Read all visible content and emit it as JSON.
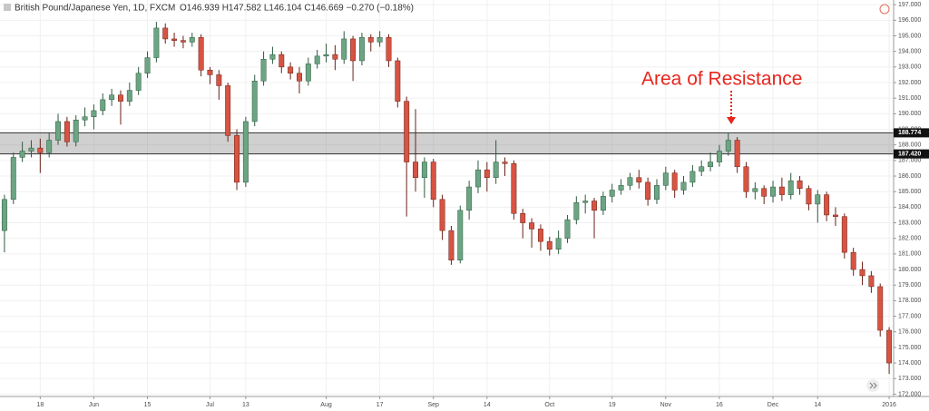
{
  "chart_data": {
    "type": "candlestick",
    "title": "British Pound/Japanese Yen, 1D, FXCM",
    "subtitle": "O146.939 H147.582 L146.104 C146.669 −0.270 (−0.18%)",
    "annotation": "Area of Resistance",
    "up_color": "#6ba583",
    "down_color": "#d75442",
    "grid": true,
    "xlim": [
      -0.5,
      99.5
    ],
    "ylim": [
      171.85,
      197.3
    ],
    "xticks": [
      {
        "value": 4,
        "label": "18"
      },
      {
        "value": 10,
        "label": "Jun"
      },
      {
        "value": 16,
        "label": "15"
      },
      {
        "value": 23,
        "label": "Jul"
      },
      {
        "value": 27,
        "label": "13"
      },
      {
        "value": 36,
        "label": "Aug"
      },
      {
        "value": 42,
        "label": "17"
      },
      {
        "value": 48,
        "label": "Sep"
      },
      {
        "value": 54,
        "label": "14"
      },
      {
        "value": 61,
        "label": "Oct"
      },
      {
        "value": 68,
        "label": "19"
      },
      {
        "value": 74,
        "label": "Nov"
      },
      {
        "value": 80,
        "label": "16"
      },
      {
        "value": 86,
        "label": "Dec"
      },
      {
        "value": 91,
        "label": "14"
      },
      {
        "value": 99,
        "label": "2016"
      }
    ],
    "yticks": [
      {
        "value": 172,
        "label": "172.000"
      },
      {
        "value": 173,
        "label": "173.000"
      },
      {
        "value": 174,
        "label": "174.000"
      },
      {
        "value": 175,
        "label": "175.000"
      },
      {
        "value": 176,
        "label": "176.000"
      },
      {
        "value": 177,
        "label": "177.000"
      },
      {
        "value": 178,
        "label": "178.000"
      },
      {
        "value": 179,
        "label": "179.000"
      },
      {
        "value": 180,
        "label": "180.000"
      },
      {
        "value": 181,
        "label": "181.000"
      },
      {
        "value": 182,
        "label": "182.000"
      },
      {
        "value": 183,
        "label": "183.000"
      },
      {
        "value": 184,
        "label": "184.000"
      },
      {
        "value": 185,
        "label": "185.000"
      },
      {
        "value": 186,
        "label": "186.000"
      },
      {
        "value": 187,
        "label": "187.000"
      },
      {
        "value": 188,
        "label": "188.000"
      },
      {
        "value": 189,
        "label": "189.000"
      },
      {
        "value": 190,
        "label": "190.000"
      },
      {
        "value": 191,
        "label": "191.000"
      },
      {
        "value": 192,
        "label": "192.000"
      },
      {
        "value": 193,
        "label": "193.000"
      },
      {
        "value": 194,
        "label": "194.000"
      },
      {
        "value": 195,
        "label": "195.000"
      },
      {
        "value": 196,
        "label": "196.000"
      },
      {
        "value": 197,
        "label": "197.000"
      }
    ],
    "resistance_zone": [
      {
        "value": 187.42,
        "label": "187.420"
      },
      {
        "value": 188.774,
        "label": "188.774"
      }
    ],
    "open": [
      182.5,
      184.5,
      187.2,
      187.6,
      187.8,
      187.5,
      188.3,
      189.5,
      188.2,
      189.6,
      189.8,
      190.2,
      190.9,
      191.2,
      190.8,
      191.5,
      192.6,
      193.6,
      195.5,
      194.8,
      194.7,
      194.6,
      194.9,
      192.8,
      192.5,
      191.8,
      188.6,
      185.6,
      189.5,
      192.1,
      193.5,
      193.8,
      193.0,
      192.6,
      192.1,
      193.2,
      193.7,
      193.8,
      193.5,
      194.8,
      193.4,
      194.9,
      194.6,
      194.9,
      193.4,
      190.8,
      186.9,
      185.9,
      186.9,
      184.5,
      182.5,
      180.6,
      183.8,
      185.3,
      186.4,
      185.9,
      186.9,
      186.8,
      183.6,
      183.0,
      182.6,
      181.8,
      181.3,
      182.0,
      183.2,
      184.3,
      184.4,
      183.8,
      184.7,
      185.1,
      185.4,
      185.9,
      185.6,
      184.5,
      185.4,
      186.2,
      185.1,
      185.6,
      186.3,
      186.6,
      186.9,
      187.6,
      188.3,
      186.6,
      185.0,
      185.2,
      184.7,
      185.3,
      184.8,
      185.7,
      185.2,
      184.2,
      184.8,
      183.5,
      183.4,
      181.1,
      180.0,
      179.6,
      178.9,
      176.1
    ],
    "high": [
      184.8,
      187.5,
      188.2,
      188.3,
      188.4,
      188.8,
      190.0,
      189.8,
      189.9,
      190.4,
      190.6,
      191.3,
      191.6,
      191.5,
      192.0,
      193.0,
      194.0,
      195.9,
      195.8,
      195.2,
      195.0,
      195.2,
      195.1,
      193.0,
      192.8,
      192.0,
      189.0,
      189.8,
      192.5,
      194.0,
      194.3,
      194.0,
      193.3,
      193.0,
      193.6,
      194.1,
      194.5,
      194.4,
      195.3,
      195.0,
      195.2,
      195.1,
      195.3,
      195.1,
      193.6,
      191.1,
      190.3,
      187.2,
      187.1,
      184.8,
      182.8,
      184.1,
      185.7,
      187.0,
      186.9,
      188.3,
      187.2,
      187.0,
      183.9,
      183.3,
      182.9,
      182.1,
      182.5,
      183.5,
      184.7,
      184.8,
      184.6,
      185.0,
      185.5,
      185.8,
      186.2,
      186.4,
      185.9,
      185.8,
      186.6,
      186.4,
      186.0,
      186.7,
      187.0,
      187.5,
      188.0,
      188.8,
      188.5,
      186.9,
      185.6,
      185.4,
      185.7,
      185.9,
      186.2,
      186.0,
      185.4,
      185.1,
      185.0,
      184.0,
      183.6,
      181.4,
      180.5,
      179.9,
      179.1,
      176.3
    ],
    "low": [
      181.1,
      184.2,
      186.9,
      187.2,
      186.2,
      187.2,
      188.0,
      187.9,
      187.9,
      189.2,
      189.0,
      189.9,
      190.5,
      189.3,
      190.5,
      191.2,
      192.3,
      193.3,
      194.5,
      194.3,
      194.2,
      194.3,
      192.4,
      191.9,
      190.9,
      188.2,
      185.1,
      185.3,
      189.2,
      191.8,
      193.2,
      192.6,
      192.2,
      191.3,
      191.8,
      192.9,
      193.3,
      192.8,
      193.2,
      192.1,
      193.1,
      194.0,
      194.3,
      193.0,
      190.4,
      183.4,
      185.0,
      184.6,
      184.0,
      181.9,
      180.3,
      180.4,
      183.2,
      184.9,
      185.0,
      185.5,
      186.0,
      183.2,
      182.0,
      181.4,
      181.2,
      180.9,
      181.0,
      181.7,
      182.9,
      183.6,
      182.0,
      183.5,
      184.3,
      184.8,
      185.1,
      185.2,
      184.1,
      184.2,
      185.1,
      184.6,
      184.8,
      185.3,
      186.0,
      186.3,
      186.6,
      187.3,
      186.2,
      184.6,
      184.5,
      184.2,
      184.3,
      184.4,
      184.5,
      184.8,
      183.8,
      183.0,
      183.1,
      182.8,
      180.7,
      179.6,
      179.0,
      178.5,
      175.7,
      173.3
    ],
    "close": [
      184.5,
      187.2,
      187.6,
      187.8,
      187.5,
      188.3,
      189.5,
      188.2,
      189.6,
      189.8,
      190.2,
      190.9,
      191.2,
      190.8,
      191.5,
      192.6,
      193.6,
      195.5,
      194.8,
      194.7,
      194.6,
      194.9,
      192.8,
      192.5,
      191.8,
      188.6,
      185.6,
      189.5,
      192.1,
      193.5,
      193.8,
      193.0,
      192.6,
      192.1,
      193.2,
      193.7,
      193.8,
      193.5,
      194.8,
      193.4,
      194.9,
      194.6,
      194.9,
      193.4,
      190.8,
      186.9,
      185.9,
      186.9,
      184.5,
      182.5,
      180.6,
      183.8,
      185.3,
      186.4,
      185.9,
      186.9,
      186.8,
      183.6,
      183.0,
      182.6,
      181.8,
      181.3,
      182.0,
      183.2,
      184.3,
      184.4,
      183.8,
      184.7,
      185.1,
      185.4,
      185.9,
      185.6,
      184.5,
      185.4,
      186.2,
      185.1,
      185.6,
      186.3,
      186.6,
      186.9,
      187.6,
      188.3,
      186.6,
      185.0,
      185.2,
      184.7,
      185.3,
      184.8,
      185.7,
      185.2,
      184.2,
      184.8,
      183.5,
      183.4,
      181.1,
      180.0,
      179.6,
      178.9,
      176.1,
      174.0
    ]
  }
}
